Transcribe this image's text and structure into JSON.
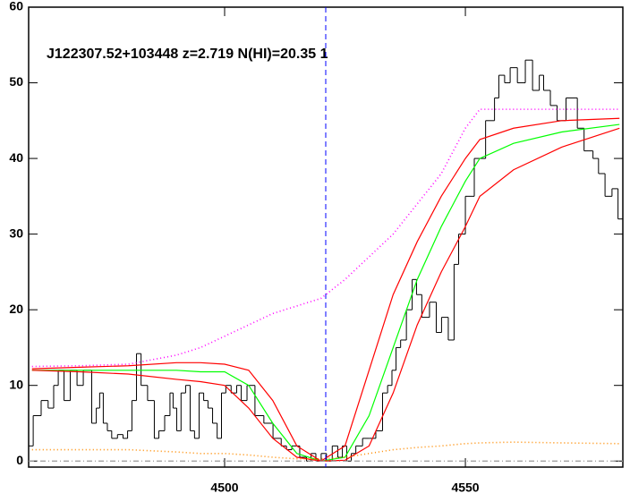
{
  "chart_data": {
    "type": "line",
    "title": "J122307.52+103448 z=2.719 N(HI)=20.35 1",
    "xlim": [
      4459.3,
      4582.7
    ],
    "ylim": [
      -0.8,
      60
    ],
    "xticks": [
      4500,
      4550
    ],
    "yticks": [
      0,
      10,
      20,
      30,
      40,
      50,
      60
    ],
    "vline": {
      "x": 4521,
      "color": "#0000ff",
      "dash": "6,4"
    },
    "series": [
      {
        "color": "#000000",
        "style": "step",
        "x": [
          4459.3,
          4461.2,
          4462.6,
          4464.1,
          4464.9,
          4466.0,
          4467.3,
          4468.6,
          4470.1,
          4471.2,
          4471.9,
          4472.9,
          4473.8,
          4474.3,
          4475.3,
          4476.0,
          4477.1,
          4478.4,
          4479.4,
          4480.3,
          4481.2,
          4482.2,
          4483.1,
          4484.9,
          4485.9,
          4486.8,
          4488.3,
          4489.0,
          4489.6,
          4490.5,
          4491.4,
          4492.4,
          4493.3,
          4494.2,
          4495.2,
          4496.1,
          4497.0,
          4498.0,
          4498.9,
          4499.8,
          4500.7,
          4502.0,
          4503.0,
          4503.9,
          4505.4,
          4507.2,
          4509.1,
          4511.0,
          4512.5,
          4513.2,
          4514.7,
          4516.5,
          4517.5,
          4518.4,
          4519.5,
          4520.6,
          4521.7,
          4523.0,
          4524.0,
          4524.9,
          4525.8,
          4526.8,
          4527.7,
          4529.6,
          4530.5,
          4532.3,
          4533.3,
          4534.4,
          4535.1,
          4536.1,
          4537.0,
          4538.5,
          4539.4,
          4540.3,
          4541.6,
          4543.5,
          4544.4,
          4545.7,
          4547.2,
          4548.1,
          4549.1,
          4550.9,
          4552.8,
          4555.6,
          4556.5,
          4557.4,
          4558.9,
          4559.7,
          4561.9,
          4563.0,
          4564.9,
          4565.8,
          4566.7,
          4568.6,
          4569.5,
          4572.3,
          4574.2,
          4575.1,
          4576.0,
          4577.0,
          4578.3,
          4579.7,
          4581.2,
          4582.2
        ],
        "values": [
          2,
          6,
          8,
          7,
          10,
          12,
          8,
          12,
          10,
          12,
          12,
          5,
          7,
          9,
          5,
          4,
          3,
          3.5,
          3,
          4,
          8,
          14.2,
          10,
          8,
          3,
          4,
          6,
          9,
          7,
          4,
          9,
          10,
          4,
          3,
          9,
          8,
          7,
          5,
          3,
          9,
          10,
          9,
          10,
          8,
          10,
          6,
          5,
          3,
          2,
          1.5,
          2,
          0.5,
          0,
          1,
          0,
          1,
          0,
          2,
          0.5,
          2,
          0,
          1,
          2,
          3,
          3,
          4,
          9,
          10,
          12,
          15,
          16,
          20,
          24,
          22,
          19,
          21,
          17,
          19,
          16,
          26,
          30,
          35,
          40,
          45,
          48,
          51,
          50,
          52,
          50,
          53,
          49,
          51,
          49,
          47,
          45,
          48,
          44,
          41,
          41,
          40,
          38,
          35,
          36,
          32
        ]
      },
      {
        "color": "#00ff00",
        "style": "solid",
        "x": [
          4460,
          4470,
          4480,
          4490,
          4495,
          4500,
          4505,
          4510,
          4515,
          4520,
          4525,
          4530,
          4535,
          4540,
          4545,
          4550,
          4553,
          4560,
          4570,
          4582
        ],
        "values": [
          12,
          12,
          12,
          12,
          11.8,
          11.8,
          10,
          5,
          1,
          0,
          0.5,
          6,
          15,
          24,
          31,
          37,
          40,
          42,
          43.5,
          44.5
        ]
      },
      {
        "color": "#ff0000",
        "style": "solid",
        "x": [
          4460,
          4470,
          4480,
          4490,
          4495,
          4500,
          4505,
          4510,
          4515,
          4520,
          4525,
          4530,
          4535,
          4540,
          4545,
          4550,
          4553,
          4560,
          4570,
          4582
        ],
        "values": [
          12.2,
          12.4,
          12.6,
          13,
          13,
          12.8,
          12,
          8,
          2,
          0,
          2,
          12,
          22,
          29,
          35,
          40,
          42.5,
          44,
          45,
          45.3
        ]
      },
      {
        "color": "#ff0000",
        "style": "solid",
        "x": [
          4460,
          4470,
          4480,
          4490,
          4495,
          4500,
          4505,
          4510,
          4515,
          4520,
          4525,
          4530,
          4535,
          4540,
          4545,
          4550,
          4553,
          4560,
          4570,
          4582
        ],
        "values": [
          12,
          11.8,
          11.5,
          10.8,
          10.5,
          10,
          7,
          3,
          0.5,
          0,
          0.1,
          2,
          9,
          18,
          25,
          31,
          35,
          38.5,
          41.5,
          44
        ]
      },
      {
        "color": "#ff00ff",
        "style": "dotted",
        "x": [
          4460,
          4470,
          4480,
          4490,
          4495,
          4500,
          4505,
          4510,
          4515,
          4520,
          4525,
          4530,
          4535,
          4540,
          4545,
          4550,
          4553,
          4560,
          4570,
          4582
        ],
        "values": [
          12.5,
          12.6,
          12.8,
          14,
          15,
          16.5,
          18,
          19.5,
          20.5,
          21.5,
          24,
          27,
          30,
          34,
          38,
          44,
          46.5,
          46.5,
          46.5,
          46.5
        ]
      },
      {
        "color": "#ff8c00",
        "style": "dotted",
        "x": [
          4460,
          4470,
          4480,
          4490,
          4495,
          4500,
          4505,
          4510,
          4515,
          4520,
          4525,
          4530,
          4535,
          4540,
          4545,
          4550,
          4553,
          4560,
          4570,
          4582
        ],
        "values": [
          1.5,
          1.5,
          1.5,
          1.2,
          1,
          1,
          0.8,
          0.5,
          0.3,
          0.3,
          0.5,
          1,
          1.5,
          1.8,
          2,
          2.3,
          2.4,
          2.5,
          2.4,
          2.3
        ]
      },
      {
        "color": "#999999",
        "style": "dashdot",
        "x": [
          4459.3,
          4582.7
        ],
        "values": [
          0,
          0
        ]
      }
    ]
  }
}
